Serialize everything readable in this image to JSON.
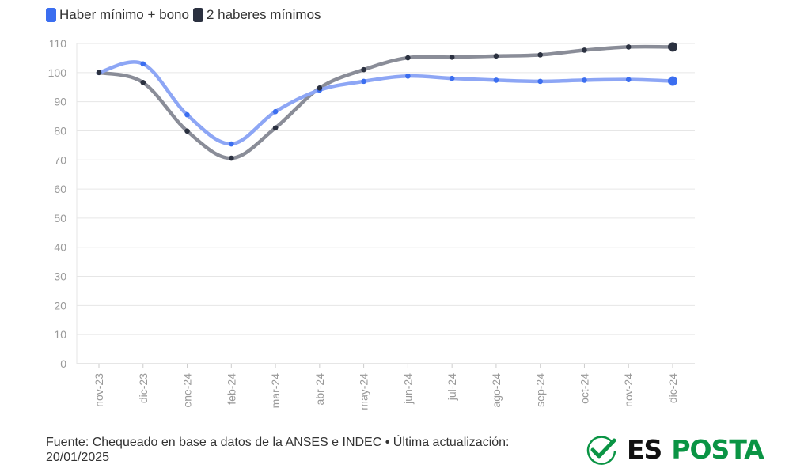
{
  "chart_data": {
    "type": "line",
    "categories": [
      "nov-23",
      "dic-23",
      "ene-24",
      "feb-24",
      "mar-24",
      "abr-24",
      "may-24",
      "jun-24",
      "jul-24",
      "ago-24",
      "sep-24",
      "oct-24",
      "nov-24",
      "dic-24"
    ],
    "series": [
      {
        "name": "Haber mínimo + bono",
        "line_color": "#8da6f5",
        "point_color": "#3b6ef0",
        "values": [
          100,
          103,
          85.5,
          75.5,
          86.6,
          94,
          97,
          98.8,
          98,
          97.4,
          97,
          97.4,
          97.6,
          97.1
        ]
      },
      {
        "name": "2 haberes mínimos",
        "line_color": "#8a8d98",
        "point_color": "#2b3140",
        "values": [
          100,
          96.6,
          79.9,
          70.6,
          81,
          94.7,
          101,
          105.1,
          105.3,
          105.7,
          106.1,
          107.7,
          108.8,
          108.8
        ]
      }
    ],
    "yticks": [
      0,
      10,
      20,
      30,
      40,
      50,
      60,
      70,
      80,
      90,
      100,
      110
    ],
    "ylim": [
      0,
      110
    ],
    "grid": true,
    "legend_position": "top-left"
  },
  "footer": {
    "prefix": "Fuente: ",
    "source_link": "Chequeado en base a datos de la ANSES e INDEC",
    "suffix": " • Última actualización: 20/01/2025"
  },
  "logo": {
    "part1": "ES",
    "part2": "POSTA"
  }
}
